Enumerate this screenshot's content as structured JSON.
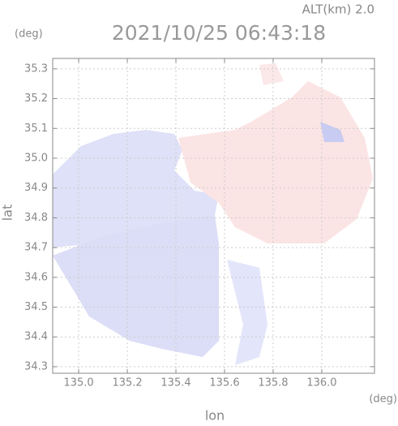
{
  "chart_data": {
    "type": "map",
    "title": "2021/10/25 06:43:18",
    "altitude_label": "ALT(km) 2.0",
    "y_unit": "(deg)",
    "x_unit": "(deg)",
    "xlabel": "lon",
    "ylabel": "lat",
    "xlim": [
      134.893,
      136.217
    ],
    "ylim": [
      34.278,
      35.335
    ],
    "xticks": [
      {
        "value": 135,
        "label": "135.0"
      },
      135.2,
      135.4,
      135.6,
      135.8,
      {
        "value": 136,
        "label": "136.0"
      }
    ],
    "yticks": [
      34.3,
      34.4,
      34.5,
      34.6,
      34.7,
      34.8,
      34.9,
      {
        "value": 35,
        "label": "35.0"
      },
      35.1,
      35.2,
      35.3
    ],
    "grid": true
  }
}
